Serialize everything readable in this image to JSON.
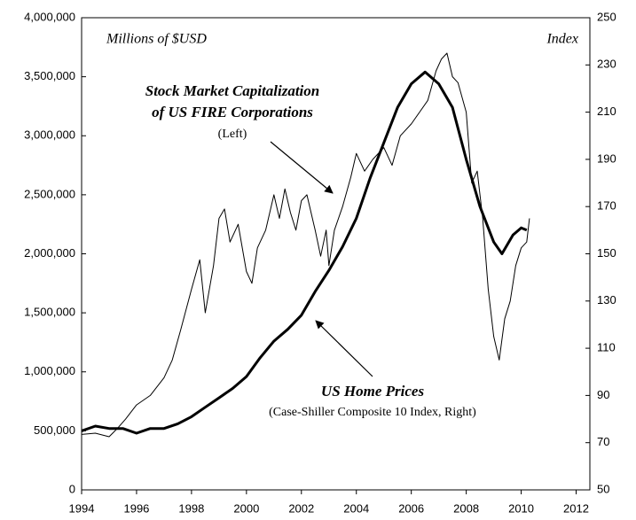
{
  "chart_data": {
    "type": "line",
    "annotations": {
      "left_unit": "Millions of $USD",
      "right_unit": "Index",
      "stock_line1": "Stock Market Capitalization",
      "stock_line2": "of US FIRE Corporations",
      "stock_line3": "(Left)",
      "home_line1": "US Home Prices",
      "home_line2": "(Case-Shiller Composite 10 Index, Right)"
    },
    "xlim": [
      1994,
      2012.5
    ],
    "xticks": [
      1994,
      1996,
      1998,
      2000,
      2002,
      2004,
      2006,
      2008,
      2010,
      2012
    ],
    "ylim": [
      0,
      4000000
    ],
    "yticks": [
      {
        "value": 0,
        "label": "0"
      },
      {
        "value": 500000,
        "label": "500,000"
      },
      {
        "value": 1000000,
        "label": "1,000,000"
      },
      {
        "value": 1500000,
        "label": "1,500,000"
      },
      {
        "value": 2000000,
        "label": "2,000,000"
      },
      {
        "value": 2500000,
        "label": "2,500,000"
      },
      {
        "value": 3000000,
        "label": "3,000,000"
      },
      {
        "value": 3500000,
        "label": "3,500,000"
      },
      {
        "value": 4000000,
        "label": "4,000,000"
      }
    ],
    "y2lim": [
      50,
      250
    ],
    "y2ticks": [
      50,
      70,
      90,
      110,
      130,
      150,
      170,
      190,
      210,
      230,
      250
    ],
    "series": [
      {
        "color": "#000000",
        "width": 1,
        "axis": "y",
        "x": [
          1994.0,
          1994.5,
          1995.0,
          1995.3,
          1995.6,
          1996.0,
          1996.5,
          1997.0,
          1997.3,
          1997.6,
          1998.0,
          1998.3,
          1998.5,
          1998.8,
          1999.0,
          1999.2,
          1999.4,
          1999.7,
          2000.0,
          2000.2,
          2000.4,
          2000.7,
          2001.0,
          2001.2,
          2001.4,
          2001.6,
          2001.8,
          2002.0,
          2002.2,
          2002.5,
          2002.7,
          2002.9,
          2003.0,
          2003.2,
          2003.5,
          2003.8,
          2004.0,
          2004.3,
          2004.6,
          2005.0,
          2005.3,
          2005.6,
          2006.0,
          2006.3,
          2006.6,
          2006.9,
          2007.1,
          2007.3,
          2007.5,
          2007.7,
          2008.0,
          2008.2,
          2008.4,
          2008.6,
          2008.8,
          2009.0,
          2009.2,
          2009.4,
          2009.6,
          2009.8,
          2010.0,
          2010.2,
          2010.3
        ],
        "values": [
          470000,
          480000,
          450000,
          520000,
          600000,
          720000,
          800000,
          950000,
          1100000,
          1350000,
          1700000,
          1950000,
          1500000,
          1900000,
          2300000,
          2380000,
          2100000,
          2250000,
          1850000,
          1750000,
          2050000,
          2200000,
          2500000,
          2300000,
          2550000,
          2350000,
          2200000,
          2450000,
          2500000,
          2200000,
          1980000,
          2200000,
          1900000,
          2200000,
          2400000,
          2650000,
          2850000,
          2700000,
          2800000,
          2900000,
          2750000,
          3000000,
          3100000,
          3200000,
          3300000,
          3550000,
          3650000,
          3700000,
          3500000,
          3450000,
          3200000,
          2600000,
          2700000,
          2300000,
          1700000,
          1300000,
          1100000,
          1450000,
          1600000,
          1900000,
          2050000,
          2100000,
          2300000
        ]
      },
      {
        "color": "#000000",
        "width": 3,
        "axis": "y2",
        "x": [
          1994.0,
          1994.5,
          1995.0,
          1995.5,
          1996.0,
          1996.5,
          1997.0,
          1997.5,
          1998.0,
          1998.5,
          1999.0,
          1999.5,
          2000.0,
          2000.5,
          2001.0,
          2001.5,
          2002.0,
          2002.5,
          2003.0,
          2003.5,
          2004.0,
          2004.5,
          2005.0,
          2005.5,
          2006.0,
          2006.5,
          2007.0,
          2007.5,
          2008.0,
          2008.5,
          2009.0,
          2009.3,
          2009.7,
          2010.0,
          2010.2
        ],
        "values": [
          75,
          77,
          76,
          76,
          74,
          76,
          76,
          78,
          81,
          85,
          89,
          93,
          98,
          106,
          113,
          118,
          124,
          134,
          143,
          153,
          165,
          182,
          197,
          212,
          222,
          227,
          222,
          212,
          190,
          170,
          155,
          150,
          158,
          161,
          160
        ]
      }
    ]
  }
}
